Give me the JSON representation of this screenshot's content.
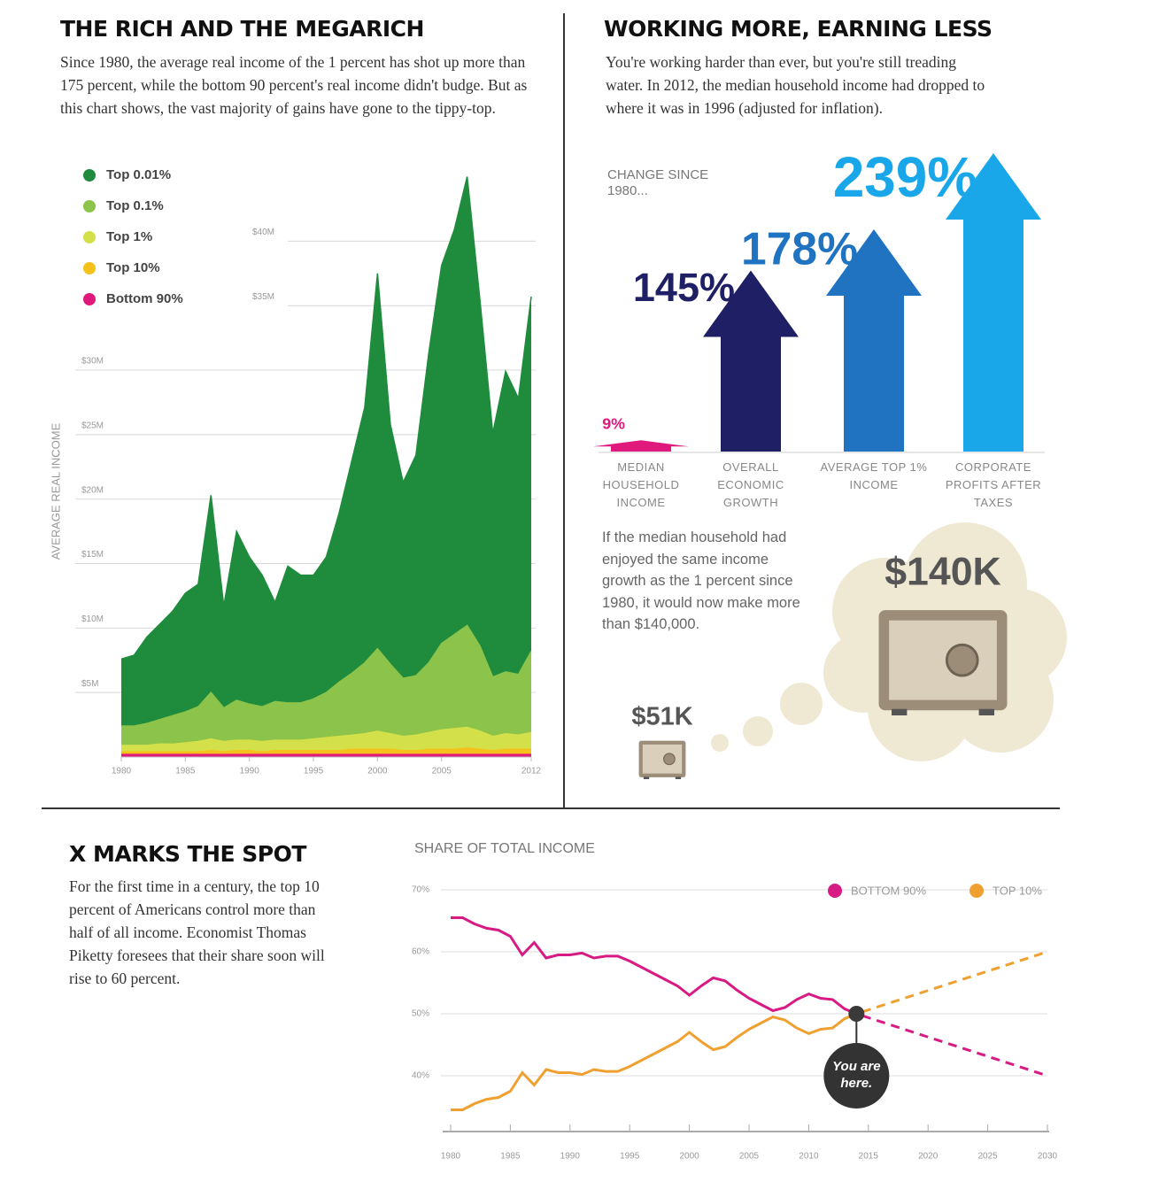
{
  "chart_data": [
    {
      "type": "area",
      "title": "THE RICH AND THE MEGARICH",
      "subtitle": "Since 1980, the average real income of the 1 percent has shot up more than 175 percent, while the bottom 90 percent's real income didn't budge. But as this chart shows, the vast majority of gains have gone to the tippy-top.",
      "ylabel": "AVERAGE REAL INCOME",
      "x": [
        1980,
        1981,
        1982,
        1983,
        1984,
        1985,
        1986,
        1987,
        1988,
        1989,
        1990,
        1991,
        1992,
        1993,
        1994,
        1995,
        1996,
        1997,
        1998,
        1999,
        2000,
        2001,
        2002,
        2003,
        2004,
        2005,
        2006,
        2007,
        2008,
        2009,
        2010,
        2011,
        2012
      ],
      "xlim": [
        1980,
        2012
      ],
      "xticks": [
        1980,
        1985,
        1990,
        1995,
        2000,
        2005,
        2012
      ],
      "ylim": [
        0,
        46
      ],
      "yticks": [
        {
          "value": 5,
          "label": "$5M"
        },
        {
          "value": 10,
          "label": "$10M"
        },
        {
          "value": 15,
          "label": "$15M"
        },
        {
          "value": 20,
          "label": "$20M"
        },
        {
          "value": 25,
          "label": "$25M"
        },
        {
          "value": 30,
          "label": "$30M"
        },
        {
          "value": 35,
          "label": "$35M"
        },
        {
          "value": 40,
          "label": "$40M"
        }
      ],
      "grid": true,
      "legend": "upper left",
      "series": [
        {
          "name": "Top 0.01%",
          "color": "#1e8c3c",
          "values": [
            7.6,
            7.9,
            9.3,
            10.3,
            11.3,
            12.7,
            13.4,
            20.3,
            11.7,
            17.5,
            15.5,
            14.1,
            12.0,
            14.8,
            14.1,
            14.1,
            15.5,
            18.9,
            23.0,
            27.1,
            37.5,
            25.8,
            21.3,
            23.4,
            31.3,
            38.1,
            40.9,
            45.0,
            35.4,
            25.1,
            29.9,
            27.8,
            35.7
          ]
        },
        {
          "name": "Top 0.1%",
          "color": "#8cc34a",
          "values": [
            2.4,
            2.4,
            2.6,
            2.9,
            3.2,
            3.5,
            3.9,
            5.0,
            3.8,
            4.4,
            4.1,
            3.9,
            4.3,
            4.2,
            4.2,
            4.5,
            5.0,
            5.8,
            6.5,
            7.3,
            8.4,
            7.2,
            6.1,
            6.3,
            7.3,
            8.8,
            9.5,
            10.2,
            8.6,
            6.2,
            6.6,
            6.4,
            8.2
          ]
        },
        {
          "name": "Top 1%",
          "color": "#d4e04a",
          "values": [
            0.9,
            0.9,
            0.9,
            1.0,
            1.0,
            1.1,
            1.2,
            1.4,
            1.2,
            1.3,
            1.3,
            1.2,
            1.3,
            1.3,
            1.3,
            1.4,
            1.5,
            1.6,
            1.7,
            1.8,
            2.0,
            1.8,
            1.6,
            1.7,
            1.9,
            2.1,
            2.2,
            2.3,
            2.0,
            1.6,
            1.8,
            1.7,
            1.9
          ]
        },
        {
          "name": "Top 10%",
          "color": "#f5c21b",
          "values": [
            0.4,
            0.4,
            0.4,
            0.4,
            0.4,
            0.4,
            0.4,
            0.5,
            0.4,
            0.5,
            0.5,
            0.4,
            0.5,
            0.5,
            0.5,
            0.5,
            0.5,
            0.5,
            0.6,
            0.6,
            0.6,
            0.6,
            0.5,
            0.5,
            0.6,
            0.6,
            0.6,
            0.7,
            0.6,
            0.5,
            0.6,
            0.6,
            0.6
          ]
        },
        {
          "name": "Bottom 90%",
          "color": "#e0197d",
          "values": [
            0.2,
            0.2,
            0.2,
            0.2,
            0.2,
            0.2,
            0.2,
            0.2,
            0.2,
            0.2,
            0.2,
            0.2,
            0.2,
            0.2,
            0.2,
            0.2,
            0.2,
            0.2,
            0.2,
            0.2,
            0.2,
            0.2,
            0.2,
            0.2,
            0.2,
            0.2,
            0.2,
            0.2,
            0.2,
            0.2,
            0.2,
            0.2,
            0.2
          ]
        }
      ]
    },
    {
      "type": "arrow",
      "title": "WORKING MORE, EARNING LESS",
      "subtitle": "You're working harder than ever, but you're still treading water. In 2012, the median household income had dropped to where it was in 1996 (adjusted for inflation).",
      "annotation": "CHANGE SINCE 1980...",
      "categories": [
        "MEDIAN HOUSEHOLD INCOME",
        "OVERALL ECONOMIC GROWTH",
        "AVERAGE TOP 1% INCOME",
        "CORPORATE PROFITS AFTER TAXES"
      ],
      "values": [
        9,
        145,
        178,
        239
      ],
      "value_labels": [
        "9%",
        "145%",
        "178%",
        "239%"
      ],
      "colors": [
        "#e0197d",
        "#1f1f66",
        "#1f73c0",
        "#1aa7ea"
      ],
      "note": "If the median household had enjoyed the same income growth as the 1 percent since 1980, it would now make more than $140,000.",
      "callouts": [
        {
          "value": 51000,
          "label": "$51K"
        },
        {
          "value": 140000,
          "label": "$140K"
        }
      ]
    },
    {
      "type": "line",
      "title": "X MARKS THE SPOT",
      "subtitle": "For the first time in a century, the top 10 percent of Americans control more than half of all income. Economist Thomas Piketty foresees that their share soon will rise to 60 percent.",
      "ylabel": "SHARE OF TOTAL INCOME",
      "annotation": "You are here.",
      "projection_start": 2014,
      "x": [
        1980,
        1981,
        1982,
        1983,
        1984,
        1985,
        1986,
        1987,
        1988,
        1989,
        1990,
        1991,
        1992,
        1993,
        1994,
        1995,
        1996,
        1997,
        1998,
        1999,
        2000,
        2001,
        2002,
        2003,
        2004,
        2005,
        2006,
        2007,
        2008,
        2009,
        2010,
        2011,
        2012,
        2013,
        2014,
        2030
      ],
      "xlim": [
        1980,
        2030
      ],
      "xticks": [
        1980,
        1985,
        1990,
        1995,
        2000,
        2005,
        2010,
        2015,
        2020,
        2025,
        2030
      ],
      "ylim": [
        31,
        71
      ],
      "yticks": [
        {
          "value": 40,
          "label": "40%"
        },
        {
          "value": 50,
          "label": "50%"
        },
        {
          "value": 60,
          "label": "60%"
        },
        {
          "value": 70,
          "label": "70%"
        }
      ],
      "grid": true,
      "legend": "upper right",
      "series": [
        {
          "name": "BOTTOM 90%",
          "color": "#d81b84",
          "values": [
            65.5,
            65.5,
            64.5,
            63.8,
            63.5,
            62.5,
            59.5,
            61.5,
            59.0,
            59.5,
            59.5,
            59.8,
            59.0,
            59.3,
            59.3,
            58.5,
            57.5,
            56.5,
            55.5,
            54.5,
            53.0,
            54.5,
            55.8,
            55.3,
            53.8,
            52.5,
            51.5,
            50.5,
            51.0,
            52.3,
            53.2,
            52.5,
            52.3,
            50.8,
            50.0,
            40.0
          ]
        },
        {
          "name": "TOP 10%",
          "color": "#f0a030",
          "values": [
            34.5,
            34.5,
            35.5,
            36.2,
            36.5,
            37.5,
            40.5,
            38.5,
            41.0,
            40.5,
            40.5,
            40.2,
            41.0,
            40.7,
            40.7,
            41.5,
            42.5,
            43.5,
            44.5,
            45.5,
            47.0,
            45.5,
            44.2,
            44.7,
            46.2,
            47.5,
            48.5,
            49.5,
            49.0,
            47.7,
            46.8,
            47.5,
            47.7,
            49.2,
            50.0,
            60.0
          ]
        }
      ]
    }
  ]
}
